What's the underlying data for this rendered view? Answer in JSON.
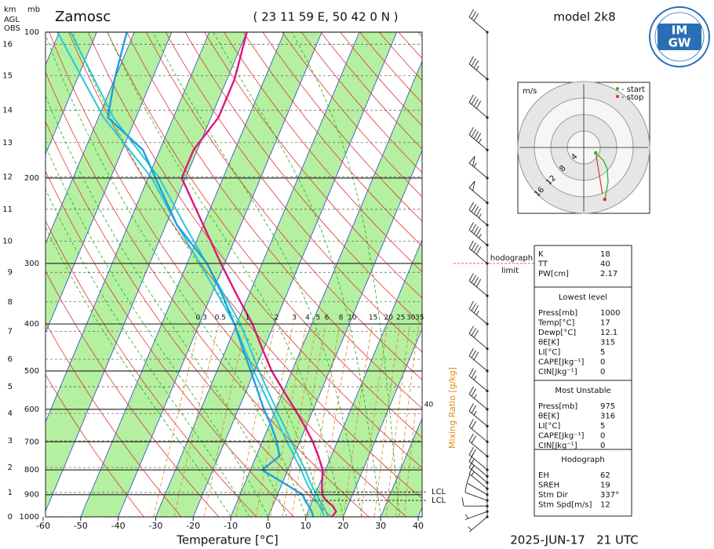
{
  "chart_data": {
    "type": "skewt",
    "title": "Zamosc",
    "location": "( 23 11 59 E, 50 42 0 N )",
    "model": "model 2k8",
    "logo": [
      "IM",
      "GW"
    ],
    "xlabel": "Temperature [°C]",
    "date": "2025-JUN-17   21 UTC",
    "height_unit": "km",
    "pressure_unit": "mb",
    "height_ref": [
      "AGL",
      "OBS"
    ],
    "xlim": [
      -60,
      40
    ],
    "xticks": [
      -60,
      -50,
      -40,
      -30,
      -20,
      -10,
      0,
      10,
      20,
      30,
      40
    ],
    "plim": [
      1000,
      100
    ],
    "pticks": [
      1000,
      900,
      800,
      700,
      600,
      500,
      400,
      300,
      200,
      100
    ],
    "heights": [
      {
        "km": 0,
        "p": 1000
      },
      {
        "km": 1,
        "p": 891
      },
      {
        "km": 2,
        "p": 791
      },
      {
        "km": 3,
        "p": 697
      },
      {
        "km": 4,
        "p": 612
      },
      {
        "km": 5,
        "p": 539
      },
      {
        "km": 6,
        "p": 473
      },
      {
        "km": 7,
        "p": 414
      },
      {
        "km": 8,
        "p": 360
      },
      {
        "km": 9,
        "p": 313
      },
      {
        "km": 10,
        "p": 270
      },
      {
        "km": 11,
        "p": 232
      },
      {
        "km": 12,
        "p": 199
      },
      {
        "km": 13,
        "p": 169
      },
      {
        "km": 14,
        "p": 145
      },
      {
        "km": 15,
        "p": 123
      },
      {
        "km": 16,
        "p": 106
      }
    ],
    "isotherms": [
      -120,
      -110,
      -100,
      -90,
      -80,
      -70,
      -60,
      -50,
      -40,
      -30,
      -20,
      -10,
      0,
      10,
      20,
      30,
      40
    ],
    "green_bands": [
      [
        -110,
        -100
      ],
      [
        -90,
        -80
      ],
      [
        -70,
        -60
      ],
      [
        -50,
        -40
      ],
      [
        -30,
        -20
      ],
      [
        -10,
        0
      ],
      [
        10,
        20
      ],
      [
        30,
        40
      ]
    ],
    "dry_adiabats": [
      240,
      250,
      260,
      270,
      280,
      290,
      300,
      310,
      320,
      330,
      340,
      350,
      360,
      370,
      380,
      390,
      400,
      410,
      420,
      430,
      440,
      450,
      460,
      470,
      480,
      490,
      500
    ],
    "moist_adiabats": [
      -10,
      -5,
      0,
      5,
      10,
      15,
      20,
      25,
      30,
      35
    ],
    "mixing_ratio": {
      "label": "Mixing Ratio [g/kg]",
      "color": "#e08a20",
      "lines": [
        0.3,
        0.5,
        1,
        2,
        3,
        4,
        5,
        6,
        8,
        10,
        15,
        20,
        25,
        30,
        35
      ],
      "extra": 40
    },
    "temperature": {
      "color": "#e0157a",
      "p": [
        1000,
        975,
        950,
        925,
        900,
        850,
        800,
        750,
        700,
        650,
        600,
        550,
        500,
        450,
        400,
        350,
        300,
        250,
        200,
        175,
        150,
        125,
        100
      ],
      "t": [
        17,
        17.5,
        16,
        13.6,
        11.9,
        10.5,
        9.3,
        6.6,
        3.5,
        -0.4,
        -4.9,
        -10,
        -15.4,
        -20.4,
        -25.8,
        -33,
        -41,
        -50,
        -61,
        -61,
        -58,
        -58,
        -60
      ]
    },
    "dewpoint": {
      "color": "#1f9fe0",
      "p": [
        1000,
        975,
        950,
        925,
        900,
        850,
        800,
        750,
        700,
        650,
        600,
        550,
        500,
        450,
        400,
        350,
        300,
        250,
        200,
        175,
        150,
        125,
        100
      ],
      "t": [
        12.1,
        11,
        9.6,
        8,
        6.7,
        0.1,
        -6.9,
        -3.8,
        -6.1,
        -9.3,
        -13.2,
        -16.9,
        -21,
        -25.6,
        -30.6,
        -36.9,
        -44.7,
        -57,
        -68,
        -74.5,
        -87.5,
        -90,
        -92
      ]
    },
    "parcels": [
      {
        "color": "#2ac8d8",
        "p": [
          1000,
          950,
          900,
          850,
          800,
          700,
          600,
          500,
          400,
          300,
          250,
          200,
          150,
          100
        ],
        "t": [
          15,
          12.5,
          9.4,
          6.4,
          3.5,
          -3.4,
          -11.1,
          -20.2,
          -30.6,
          -46.6,
          -57,
          -69,
          -88.6,
          -110.5
        ]
      },
      {
        "color": "#2ac8d8",
        "p": [
          1000,
          950,
          900,
          850,
          800,
          700,
          600,
          500,
          400,
          300,
          250,
          200,
          150,
          100
        ],
        "t": [
          16,
          13.5,
          10.4,
          7.4,
          4.6,
          -2.2,
          -9.9,
          -18.8,
          -29,
          -44.8,
          -55,
          -67,
          -86,
          -107
        ]
      }
    ],
    "lcl": {
      "label": "LCL",
      "p": [
        888,
        925
      ]
    },
    "hodograph_limit": {
      "label": [
        "hodograph",
        "limit"
      ],
      "p": 300,
      "color": "#e03030"
    },
    "wind": {
      "p": [
        100,
        125,
        150,
        175,
        200,
        225,
        250,
        275,
        300,
        350,
        400,
        450,
        500,
        550,
        600,
        650,
        700,
        750,
        800,
        825,
        850,
        875,
        900,
        925,
        950,
        975,
        1000
      ],
      "speed": [
        30,
        35,
        40,
        45,
        55,
        50,
        45,
        45,
        40,
        40,
        35,
        30,
        30,
        25,
        25,
        25,
        20,
        20,
        20,
        15,
        15,
        15,
        10,
        10,
        10,
        5,
        5
      ],
      "dir": [
        310,
        310,
        310,
        310,
        310,
        310,
        310,
        310,
        310,
        310,
        310,
        310,
        310,
        310,
        310,
        310,
        310,
        310,
        310,
        310,
        310,
        310,
        300,
        290,
        270,
        250,
        230
      ]
    },
    "hodograph": {
      "unit": "m/s",
      "rings": [
        4,
        8,
        12,
        16
      ],
      "u": [
        2.9,
        4.8,
        5.7,
        5.9,
        5.3,
        5.1
      ],
      "v": [
        -1.3,
        -3.2,
        -5.1,
        -8.4,
        -11.8,
        -12.6
      ],
      "legend": [
        "- start",
        "- stop"
      ],
      "start_color": "#22bb22",
      "stop_color": "#e03030"
    },
    "stats": [
      {
        "rows": [
          [
            "K",
            18
          ],
          [
            "TT",
            40
          ],
          [
            "PW[cm]",
            2.17
          ]
        ]
      },
      {
        "title": "Lowest level",
        "rows": [
          [
            "Press[mb]",
            1000
          ],
          [
            "Temp[°C]",
            17
          ],
          [
            "Dewp[°C]",
            12.1
          ],
          [
            "θE[K]",
            315
          ],
          [
            "LI[°C]",
            5
          ],
          [
            "CAPE[Jkg⁻¹]",
            0
          ],
          [
            "CIN[Jkg⁻¹]",
            0
          ]
        ]
      },
      {
        "title": "Most Unstable",
        "rows": [
          [
            "Press[mb]",
            975
          ],
          [
            "θE[K]",
            316
          ],
          [
            "LI[°C]",
            5
          ],
          [
            "CAPE[Jkg⁻¹]",
            0
          ],
          [
            "CIN[Jkg⁻¹]",
            0
          ]
        ]
      },
      {
        "title": "Hodograph",
        "rows": [
          [
            "EH",
            62
          ],
          [
            "SREH",
            19
          ],
          [
            "Stm Dir",
            "337°"
          ],
          [
            "Stm Spd[m/s]",
            12
          ]
        ]
      }
    ]
  }
}
